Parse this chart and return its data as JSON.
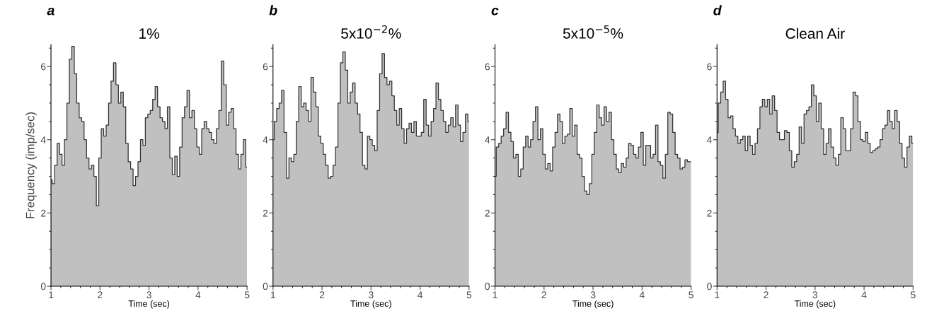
{
  "chart_data": [
    {
      "type": "area",
      "annotations": [
        "a"
      ],
      "title": "1%",
      "xlabel": "Time (sec)",
      "ylabel": "Frequency (imp/sec)",
      "xlim": [
        1,
        5
      ],
      "ylim": [
        0,
        6.6
      ],
      "xticks": [
        1,
        2,
        3,
        4,
        5
      ],
      "yticks": [
        0,
        2,
        4,
        6
      ],
      "grid": false,
      "legend": false,
      "series": [
        {
          "color": "#c0c0c0",
          "x": [
            1.0,
            1.05,
            1.1,
            1.15,
            1.2,
            1.25,
            1.3,
            1.35,
            1.4,
            1.45,
            1.5,
            1.55,
            1.6,
            1.65,
            1.7,
            1.75,
            1.8,
            1.85,
            1.9,
            1.95,
            2.0,
            2.05,
            2.1,
            2.15,
            2.2,
            2.25,
            2.3,
            2.35,
            2.4,
            2.45,
            2.5,
            2.55,
            2.6,
            2.65,
            2.7,
            2.75,
            2.8,
            2.85,
            2.9,
            2.95,
            3.0,
            3.05,
            3.1,
            3.15,
            3.2,
            3.25,
            3.3,
            3.35,
            3.4,
            3.45,
            3.5,
            3.55,
            3.6,
            3.65,
            3.7,
            3.75,
            3.8,
            3.85,
            3.9,
            3.95,
            4.0,
            4.05,
            4.1,
            4.15,
            4.2,
            4.25,
            4.3,
            4.35,
            4.4,
            4.45,
            4.5,
            4.55,
            4.6,
            4.65,
            4.7,
            4.75,
            4.8,
            4.85,
            4.9,
            4.95,
            5.0
          ],
          "values": [
            2.9,
            2.8,
            3.3,
            3.9,
            3.6,
            3.3,
            4.0,
            5.0,
            6.2,
            6.55,
            5.8,
            5.0,
            4.6,
            4.5,
            4.0,
            3.5,
            3.2,
            3.3,
            3.0,
            2.2,
            3.5,
            4.3,
            4.1,
            4.4,
            5.0,
            5.6,
            6.1,
            5.5,
            5.0,
            5.3,
            4.9,
            3.9,
            3.4,
            3.2,
            2.75,
            3.0,
            3.4,
            4.0,
            3.85,
            4.6,
            4.7,
            4.8,
            5.1,
            5.45,
            4.9,
            4.6,
            4.5,
            4.3,
            4.9,
            3.5,
            3.05,
            3.55,
            3.0,
            3.8,
            4.6,
            4.9,
            5.35,
            4.6,
            4.8,
            4.3,
            3.8,
            3.6,
            4.3,
            4.5,
            4.3,
            4.2,
            4.0,
            3.9,
            4.3,
            4.8,
            6.15,
            5.5,
            4.4,
            4.75,
            4.85,
            4.3,
            3.6,
            3.2,
            3.6,
            4.0,
            3.25
          ]
        }
      ]
    },
    {
      "type": "area",
      "annotations": [
        "b"
      ],
      "title": "5x10$^{−2}$%",
      "xlabel": "Time (sec)",
      "xlim": [
        1,
        5
      ],
      "ylim": [
        0,
        6.6
      ],
      "xticks": [
        1,
        2,
        3,
        4,
        5
      ],
      "yticks": [
        0,
        2,
        4,
        6
      ],
      "grid": false,
      "legend": false,
      "series": [
        {
          "color": "#c0c0c0",
          "x": [
            1.0,
            1.05,
            1.1,
            1.15,
            1.2,
            1.25,
            1.3,
            1.35,
            1.4,
            1.45,
            1.5,
            1.55,
            1.6,
            1.65,
            1.7,
            1.75,
            1.8,
            1.85,
            1.9,
            1.95,
            2.0,
            2.05,
            2.1,
            2.15,
            2.2,
            2.25,
            2.3,
            2.35,
            2.4,
            2.45,
            2.5,
            2.55,
            2.6,
            2.65,
            2.7,
            2.75,
            2.8,
            2.85,
            2.9,
            2.95,
            3.0,
            3.05,
            3.1,
            3.15,
            3.2,
            3.25,
            3.3,
            3.35,
            3.4,
            3.45,
            3.5,
            3.55,
            3.6,
            3.65,
            3.7,
            3.75,
            3.8,
            3.85,
            3.9,
            3.95,
            4.0,
            4.05,
            4.1,
            4.15,
            4.2,
            4.25,
            4.3,
            4.35,
            4.4,
            4.45,
            4.5,
            4.55,
            4.6,
            4.65,
            4.7,
            4.75,
            4.8,
            4.85,
            4.9,
            4.95,
            5.0
          ],
          "values": [
            4.0,
            4.5,
            4.85,
            5.0,
            5.35,
            4.2,
            2.95,
            3.5,
            3.4,
            3.6,
            4.5,
            5.45,
            4.9,
            5.0,
            4.8,
            4.5,
            5.7,
            5.3,
            4.9,
            4.1,
            3.9,
            3.6,
            3.3,
            2.95,
            3.0,
            3.3,
            3.8,
            5.0,
            6.1,
            6.4,
            5.9,
            5.0,
            5.3,
            5.55,
            5.0,
            4.7,
            4.2,
            3.3,
            3.2,
            4.1,
            4.0,
            3.85,
            3.7,
            4.8,
            5.8,
            6.35,
            5.7,
            5.5,
            5.6,
            5.2,
            4.8,
            4.4,
            4.85,
            4.3,
            3.9,
            4.3,
            4.45,
            4.2,
            4.5,
            4.1,
            4.1,
            4.2,
            5.1,
            4.4,
            4.1,
            4.5,
            4.85,
            5.55,
            5.1,
            4.8,
            4.5,
            4.2,
            4.4,
            4.6,
            4.35,
            4.95,
            4.4,
            3.95,
            4.2,
            4.7,
            4.5
          ]
        }
      ]
    },
    {
      "type": "area",
      "annotations": [
        "c"
      ],
      "title": "5x10$^{−5}$%",
      "xlabel": "Time (sec)",
      "xlim": [
        1,
        5
      ],
      "ylim": [
        0,
        6.6
      ],
      "xticks": [
        1,
        2,
        3,
        4,
        5
      ],
      "yticks": [
        0,
        2,
        4,
        6
      ],
      "grid": false,
      "legend": false,
      "series": [
        {
          "color": "#c0c0c0",
          "x": [
            1.0,
            1.05,
            1.1,
            1.15,
            1.2,
            1.25,
            1.3,
            1.35,
            1.4,
            1.45,
            1.5,
            1.55,
            1.6,
            1.65,
            1.7,
            1.75,
            1.8,
            1.85,
            1.9,
            1.95,
            2.0,
            2.05,
            2.1,
            2.15,
            2.2,
            2.25,
            2.3,
            2.35,
            2.4,
            2.45,
            2.5,
            2.55,
            2.6,
            2.65,
            2.7,
            2.75,
            2.8,
            2.85,
            2.9,
            2.95,
            3.0,
            3.05,
            3.1,
            3.15,
            3.2,
            3.25,
            3.3,
            3.35,
            3.4,
            3.45,
            3.5,
            3.55,
            3.6,
            3.65,
            3.7,
            3.75,
            3.8,
            3.85,
            3.9,
            3.95,
            4.0,
            4.05,
            4.1,
            4.15,
            4.2,
            4.25,
            4.3,
            4.35,
            4.4,
            4.45,
            4.5,
            4.55,
            4.6,
            4.65,
            4.7,
            4.75,
            4.8,
            4.85,
            4.9,
            4.95,
            5.0
          ],
          "values": [
            3.0,
            3.8,
            3.9,
            4.1,
            4.3,
            4.75,
            4.2,
            3.95,
            3.5,
            3.6,
            3.0,
            3.2,
            3.8,
            4.1,
            3.8,
            4.0,
            4.5,
            4.9,
            4.0,
            4.3,
            3.6,
            3.2,
            3.35,
            3.15,
            3.8,
            4.2,
            4.7,
            4.5,
            3.9,
            4.1,
            4.15,
            4.85,
            4.1,
            4.4,
            3.6,
            3.5,
            3.0,
            2.6,
            2.5,
            2.8,
            3.6,
            4.2,
            4.95,
            4.6,
            4.4,
            4.9,
            4.5,
            4.75,
            4.0,
            3.6,
            3.2,
            3.1,
            3.35,
            3.25,
            3.5,
            3.9,
            3.85,
            3.6,
            3.5,
            3.8,
            4.2,
            3.3,
            3.85,
            3.85,
            3.5,
            3.6,
            4.4,
            3.4,
            3.3,
            2.95,
            3.6,
            4.75,
            4.7,
            4.2,
            3.6,
            3.5,
            3.2,
            3.25,
            3.45,
            3.4,
            3.4
          ]
        }
      ]
    },
    {
      "type": "area",
      "annotations": [
        "d"
      ],
      "title": "Clean Air",
      "xlabel": "Time (sec)",
      "xlim": [
        1,
        5
      ],
      "ylim": [
        0,
        6.6
      ],
      "xticks": [
        1,
        2,
        3,
        4,
        5
      ],
      "yticks": [
        0,
        2,
        4,
        6
      ],
      "grid": false,
      "legend": false,
      "series": [
        {
          "color": "#c0c0c0",
          "x": [
            1.0,
            1.05,
            1.1,
            1.15,
            1.2,
            1.25,
            1.3,
            1.35,
            1.4,
            1.45,
            1.5,
            1.55,
            1.6,
            1.65,
            1.7,
            1.75,
            1.8,
            1.85,
            1.9,
            1.95,
            2.0,
            2.05,
            2.1,
            2.15,
            2.2,
            2.25,
            2.3,
            2.35,
            2.4,
            2.45,
            2.5,
            2.55,
            2.6,
            2.65,
            2.7,
            2.75,
            2.8,
            2.85,
            2.9,
            2.95,
            3.0,
            3.05,
            3.1,
            3.15,
            3.2,
            3.25,
            3.3,
            3.35,
            3.4,
            3.45,
            3.5,
            3.55,
            3.6,
            3.65,
            3.7,
            3.75,
            3.8,
            3.85,
            3.9,
            3.95,
            4.0,
            4.05,
            4.1,
            4.15,
            4.2,
            4.25,
            4.3,
            4.35,
            4.4,
            4.45,
            4.5,
            4.55,
            4.6,
            4.65,
            4.7,
            4.75,
            4.8,
            4.85,
            4.9,
            4.95,
            5.0
          ],
          "values": [
            4.2,
            5.0,
            5.3,
            5.6,
            5.1,
            4.6,
            4.65,
            4.3,
            4.1,
            3.9,
            4.0,
            4.1,
            3.7,
            4.1,
            3.85,
            3.6,
            3.9,
            4.3,
            4.9,
            5.1,
            4.9,
            5.1,
            4.7,
            5.2,
            4.8,
            4.2,
            4.0,
            4.0,
            4.25,
            4.2,
            3.7,
            3.25,
            3.4,
            3.6,
            4.35,
            3.9,
            4.7,
            4.8,
            4.9,
            5.5,
            5.2,
            4.5,
            5.0,
            4.3,
            3.6,
            3.9,
            4.3,
            3.8,
            3.5,
            3.3,
            3.6,
            4.6,
            4.3,
            3.7,
            3.7,
            4.3,
            5.3,
            5.2,
            4.5,
            4.0,
            3.95,
            4.2,
            3.9,
            3.65,
            3.7,
            3.75,
            3.8,
            4.0,
            4.3,
            4.4,
            4.8,
            4.5,
            4.3,
            4.8,
            4.5,
            3.9,
            3.5,
            3.25,
            3.8,
            4.1,
            3.9
          ]
        }
      ]
    }
  ]
}
